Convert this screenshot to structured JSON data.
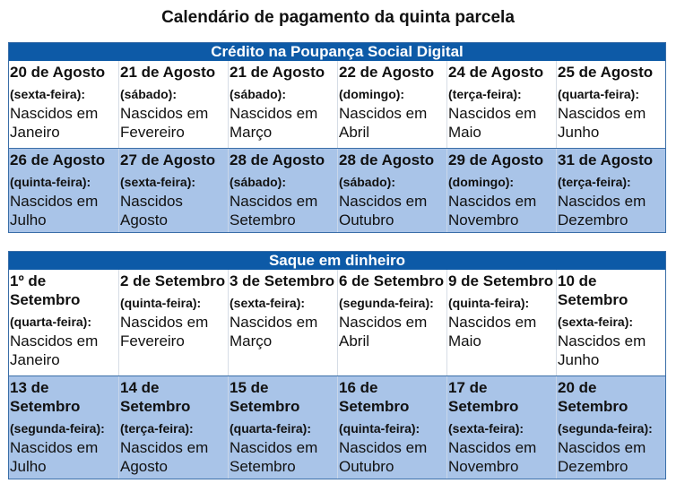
{
  "title": "Calendário de pagamento da quinta parcela",
  "sections": [
    {
      "header": "Crédito na Poupança Social Digital",
      "rows": [
        [
          {
            "date": "20 de Agosto",
            "day": "(sexta-feira):",
            "text": "Nascidos em Janeiro"
          },
          {
            "date": "21 de Agosto",
            "day": "(sábado):",
            "text": "Nascidos em Fevereiro"
          },
          {
            "date": "21 de Agosto",
            "day": "(sábado):",
            "text": "Nascidos em Março"
          },
          {
            "date": "22 de Agosto",
            "day": "(domingo):",
            "text": "Nascidos em Abril"
          },
          {
            "date": "24 de Agosto",
            "day": "(terça-feira):",
            "text": "Nascidos em Maio"
          },
          {
            "date": "25 de Agosto",
            "day": "(quarta-feira):",
            "text": "Nascidos em Junho"
          }
        ],
        [
          {
            "date": "26 de Agosto",
            "day": "(quinta-feira):",
            "text": "Nascidos em Julho"
          },
          {
            "date": "27 de Agosto",
            "day": "(sexta-feira):",
            "text": "Nascidos Agosto"
          },
          {
            "date": "28 de Agosto",
            "day": "(sábado):",
            "text": "Nascidos em Setembro"
          },
          {
            "date": "28 de Agosto",
            "day": "(sábado):",
            "text": "Nascidos em Outubro"
          },
          {
            "date": "29 de Agosto",
            "day": "(domingo):",
            "text": "Nascidos em Novembro"
          },
          {
            "date": "31 de Agosto",
            "day": "(terça-feira):",
            "text": "Nascidos em Dezembro"
          }
        ]
      ]
    },
    {
      "header": "Saque em dinheiro",
      "rows": [
        [
          {
            "date": "1º de Setembro",
            "day": "(quarta-feira):",
            "text": "Nascidos em Janeiro"
          },
          {
            "date": "2 de Setembro",
            "day": "(quinta-feira):",
            "text": "Nascidos em Fevereiro"
          },
          {
            "date": "3 de Setembro",
            "day": "(sexta-feira):",
            "text": "Nascidos em Março"
          },
          {
            "date": "6 de Setembro",
            "day": "(segunda-feira):",
            "text": "Nascidos em Abril"
          },
          {
            "date": "9 de Setembro",
            "day": "(quinta-feira):",
            "text": "Nascidos em Maio"
          },
          {
            "date": "10 de Setembro",
            "day": "(sexta-feira):",
            "text": "Nascidos em Junho"
          }
        ],
        [
          {
            "date": "13 de Setembro",
            "day": "(segunda-feira):",
            "text": "Nascidos em Julho"
          },
          {
            "date": "14 de Setembro",
            "day": "(terça-feira):",
            "text": "Nascidos em Agosto"
          },
          {
            "date": "15 de Setembro",
            "day": "(quarta-feira):",
            "text": "Nascidos em Setembro"
          },
          {
            "date": "16 de Setembro",
            "day": "(quinta-feira):",
            "text": "Nascidos em Outubro"
          },
          {
            "date": "17 de Setembro",
            "day": "(sexta-feira):",
            "text": "Nascidos em Novembro"
          },
          {
            "date": "20 de Setembro",
            "day": "(segunda-feira):",
            "text": "Nascidos em Dezembro"
          }
        ]
      ]
    }
  ],
  "colors": {
    "header": "#0d5aa7",
    "alt_row": "#a9c4e8"
  }
}
